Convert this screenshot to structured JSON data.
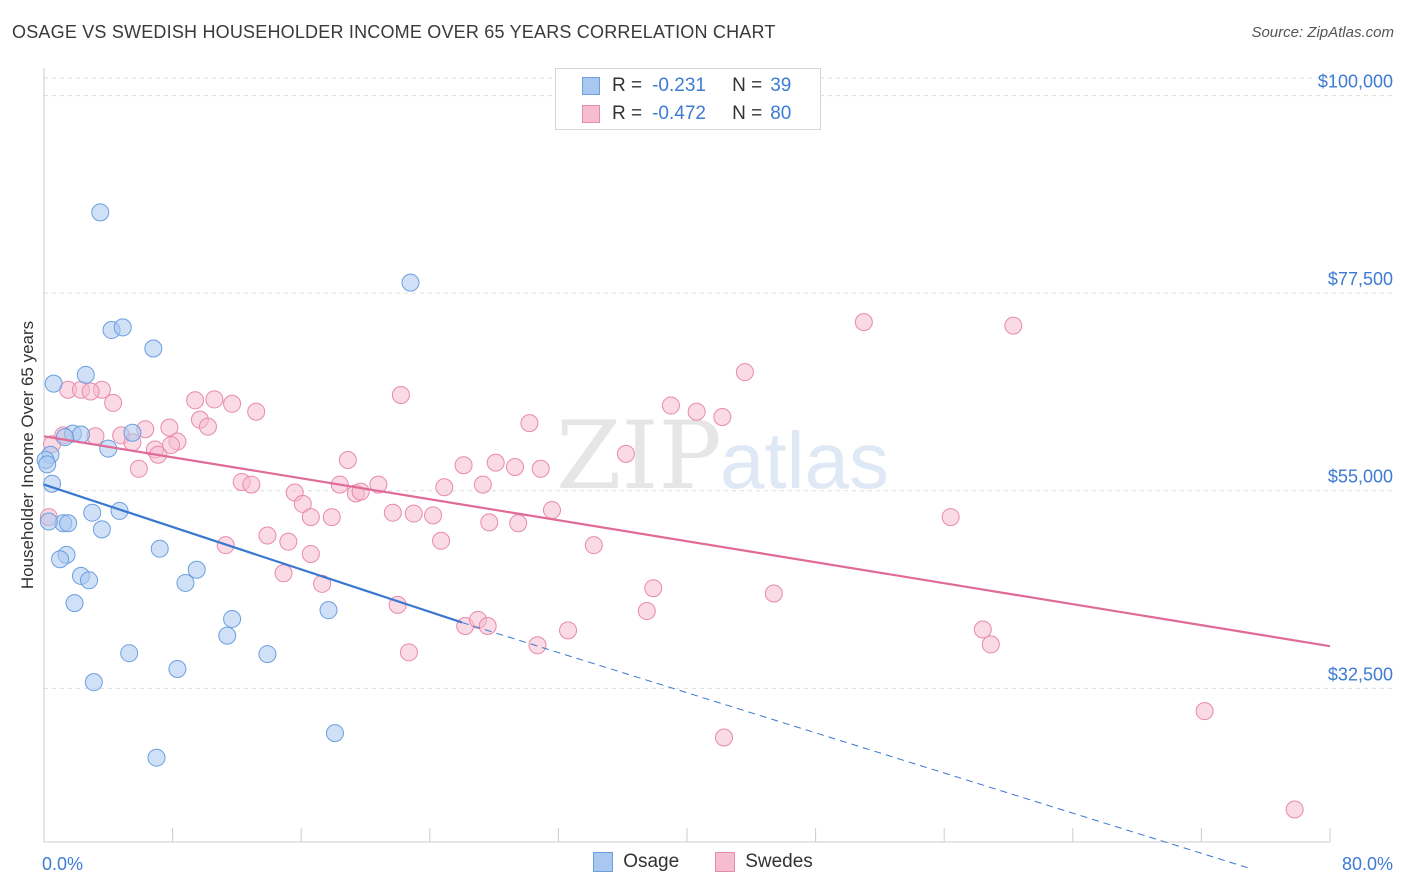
{
  "header": {
    "title": "OSAGE VS SWEDISH HOUSEHOLDER INCOME OVER 65 YEARS CORRELATION CHART",
    "source": "Source: ZipAtlas.com"
  },
  "watermark": {
    "zip": "ZIP",
    "atlas": "atlas"
  },
  "legend": {
    "rows": [
      {
        "r_label": "R =",
        "r_value": "-0.231",
        "n_label": "N =",
        "n_value": "39",
        "color": "#a9c8f0",
        "edge": "#6a9fe0"
      },
      {
        "r_label": "R =",
        "r_value": "-0.472",
        "n_label": "N =",
        "n_value": "80",
        "color": "#f6bcd0",
        "edge": "#e88aab"
      }
    ]
  },
  "bottom_legend": {
    "osage": "Osage",
    "swedes": "Swedes"
  },
  "chart_data": {
    "type": "scatter",
    "title": "OSAGE VS SWEDISH HOUSEHOLDER INCOME OVER 65 YEARS CORRELATION CHART",
    "xlabel": "",
    "ylabel": "Householder Income Over 65 years",
    "xlim": [
      0,
      80
    ],
    "ylim": [
      15000,
      102000
    ],
    "x_tick_labels": [
      "0.0%",
      "80.0%"
    ],
    "y_ticks": [
      32500,
      55000,
      77500,
      100000
    ],
    "y_tick_labels": [
      "$32,500",
      "$55,000",
      "$77,500",
      "$100,000"
    ],
    "grid": true,
    "legend_position": "top-center",
    "series": [
      {
        "name": "Osage",
        "color": "#6a9fe0",
        "fill": "#a9c8f0",
        "trend": {
          "x": [
            0,
            26
          ],
          "y": [
            55700,
            40000
          ],
          "dashed_to": [
            75,
            12000
          ]
        },
        "points": [
          [
            3.5,
            86700
          ],
          [
            22.8,
            78700
          ],
          [
            4.2,
            73300
          ],
          [
            4.9,
            73600
          ],
          [
            6.8,
            71200
          ],
          [
            0.6,
            67200
          ],
          [
            2.6,
            68200
          ],
          [
            1.8,
            61500
          ],
          [
            2.3,
            61400
          ],
          [
            5.5,
            61600
          ],
          [
            1.3,
            61100
          ],
          [
            0.4,
            59100
          ],
          [
            0.1,
            58500
          ],
          [
            4.0,
            59800
          ],
          [
            0.5,
            55800
          ],
          [
            3.0,
            52500
          ],
          [
            4.7,
            52700
          ],
          [
            1.2,
            51300
          ],
          [
            1.5,
            51300
          ],
          [
            3.6,
            50600
          ],
          [
            7.2,
            48400
          ],
          [
            1.4,
            47700
          ],
          [
            1.0,
            47200
          ],
          [
            9.5,
            46000
          ],
          [
            2.3,
            45300
          ],
          [
            2.8,
            44800
          ],
          [
            8.8,
            44500
          ],
          [
            1.9,
            42200
          ],
          [
            11.7,
            40400
          ],
          [
            17.7,
            41400
          ],
          [
            11.4,
            38500
          ],
          [
            5.3,
            36500
          ],
          [
            13.9,
            36400
          ],
          [
            8.3,
            34700
          ],
          [
            3.1,
            33200
          ],
          [
            18.1,
            27400
          ],
          [
            7.0,
            24600
          ],
          [
            0.3,
            51500
          ],
          [
            0.2,
            58000
          ]
        ]
      },
      {
        "name": "Swedes",
        "color": "#e88aab",
        "fill": "#f6bcd0",
        "trend": {
          "x": [
            0,
            80
          ],
          "y": [
            61200,
            37300
          ]
        },
        "points": [
          [
            1.5,
            66500
          ],
          [
            2.3,
            66500
          ],
          [
            3.6,
            66500
          ],
          [
            2.9,
            66300
          ],
          [
            4.3,
            65000
          ],
          [
            9.4,
            65300
          ],
          [
            10.6,
            65400
          ],
          [
            11.7,
            64900
          ],
          [
            13.2,
            64000
          ],
          [
            9.7,
            63100
          ],
          [
            7.8,
            62200
          ],
          [
            6.3,
            62000
          ],
          [
            10.2,
            62300
          ],
          [
            1.2,
            61300
          ],
          [
            3.2,
            61200
          ],
          [
            4.8,
            61300
          ],
          [
            8.3,
            60600
          ],
          [
            6.9,
            59700
          ],
          [
            5.5,
            60500
          ],
          [
            7.1,
            59100
          ],
          [
            7.9,
            60200
          ],
          [
            18.9,
            58500
          ],
          [
            22.2,
            65900
          ],
          [
            26.1,
            57900
          ],
          [
            28.1,
            58200
          ],
          [
            29.3,
            57700
          ],
          [
            30.9,
            57500
          ],
          [
            30.2,
            62700
          ],
          [
            36.2,
            59200
          ],
          [
            39.0,
            64700
          ],
          [
            40.6,
            64000
          ],
          [
            42.2,
            63400
          ],
          [
            43.6,
            68500
          ],
          [
            51.0,
            74200
          ],
          [
            60.3,
            73800
          ],
          [
            5.9,
            57500
          ],
          [
            12.3,
            56000
          ],
          [
            12.9,
            55700
          ],
          [
            15.6,
            54800
          ],
          [
            16.1,
            53500
          ],
          [
            18.4,
            55700
          ],
          [
            19.4,
            54700
          ],
          [
            19.7,
            54900
          ],
          [
            20.8,
            55700
          ],
          [
            21.7,
            52500
          ],
          [
            17.9,
            52000
          ],
          [
            23.0,
            52400
          ],
          [
            24.2,
            52200
          ],
          [
            24.7,
            49300
          ],
          [
            24.9,
            55400
          ],
          [
            27.7,
            51400
          ],
          [
            27.3,
            55700
          ],
          [
            29.5,
            51300
          ],
          [
            31.6,
            52800
          ],
          [
            34.2,
            48800
          ],
          [
            16.6,
            52000
          ],
          [
            13.9,
            49900
          ],
          [
            15.2,
            49200
          ],
          [
            16.6,
            47800
          ],
          [
            11.3,
            48800
          ],
          [
            14.9,
            45600
          ],
          [
            17.3,
            44400
          ],
          [
            22.0,
            42000
          ],
          [
            37.9,
            43900
          ],
          [
            37.5,
            41300
          ],
          [
            26.2,
            39600
          ],
          [
            27.0,
            40300
          ],
          [
            27.6,
            39600
          ],
          [
            30.7,
            37400
          ],
          [
            32.6,
            39100
          ],
          [
            45.4,
            43300
          ],
          [
            22.7,
            36600
          ],
          [
            58.4,
            39200
          ],
          [
            58.9,
            37500
          ],
          [
            42.3,
            26900
          ],
          [
            72.2,
            29900
          ],
          [
            77.8,
            18700
          ],
          [
            56.4,
            52000
          ],
          [
            0.3,
            52000
          ],
          [
            0.5,
            60300
          ]
        ]
      }
    ]
  }
}
